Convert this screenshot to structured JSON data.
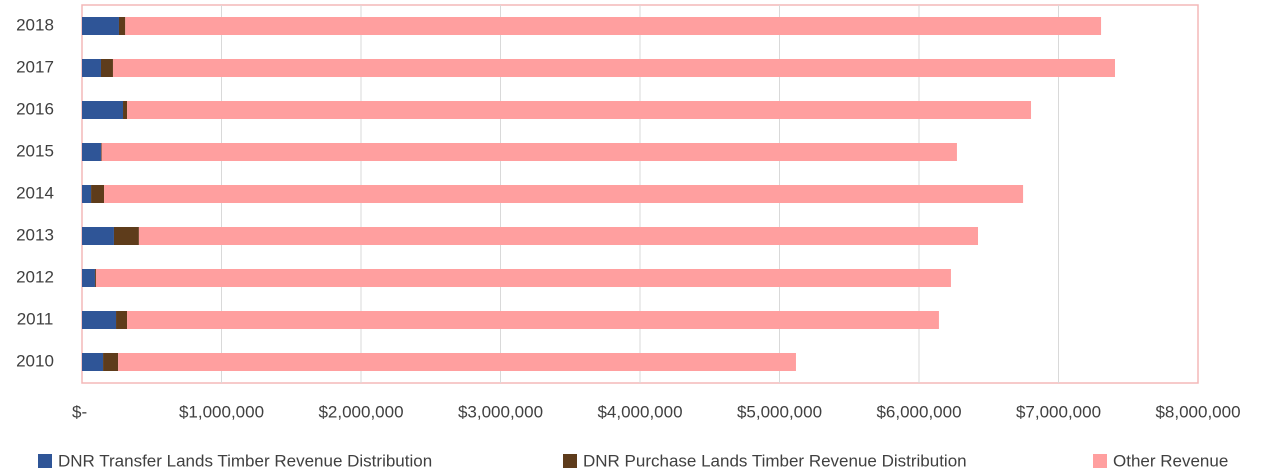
{
  "chart_data": {
    "type": "stacked_bar_horizontal",
    "categories": [
      "2010",
      "2011",
      "2012",
      "2013",
      "2014",
      "2015",
      "2016",
      "2017",
      "2018"
    ],
    "series": [
      {
        "name": "DNR Transfer Lands Timber Revenue Distribution",
        "color": "#2f5597",
        "values": [
          151000,
          244000,
          93000,
          229000,
          65000,
          136000,
          294000,
          136000,
          265000
        ]
      },
      {
        "name": "DNR Purchase Lands Timber Revenue Distribution",
        "color": "#5e3c1b",
        "values": [
          108000,
          79000,
          7000,
          179000,
          93000,
          5000,
          29000,
          86000,
          45000
        ]
      },
      {
        "name": "Other Revenue",
        "color": "#ff9f9f",
        "values": [
          4859000,
          5820000,
          6129000,
          6015000,
          6588000,
          6131000,
          6480000,
          7183000,
          6995000
        ]
      }
    ],
    "xlim": [
      0,
      8000000
    ],
    "xticks": [
      {
        "value": 0,
        "label": "$-"
      },
      {
        "value": 1000000,
        "label": "$1,000,000"
      },
      {
        "value": 2000000,
        "label": "$2,000,000"
      },
      {
        "value": 3000000,
        "label": "$3,000,000"
      },
      {
        "value": 4000000,
        "label": "$4,000,000"
      },
      {
        "value": 5000000,
        "label": "$5,000,000"
      },
      {
        "value": 6000000,
        "label": "$6,000,000"
      },
      {
        "value": 7000000,
        "label": "$7,000,000"
      },
      {
        "value": 8000000,
        "label": "$8,000,000"
      }
    ],
    "grid": true,
    "legend": "bottom"
  }
}
